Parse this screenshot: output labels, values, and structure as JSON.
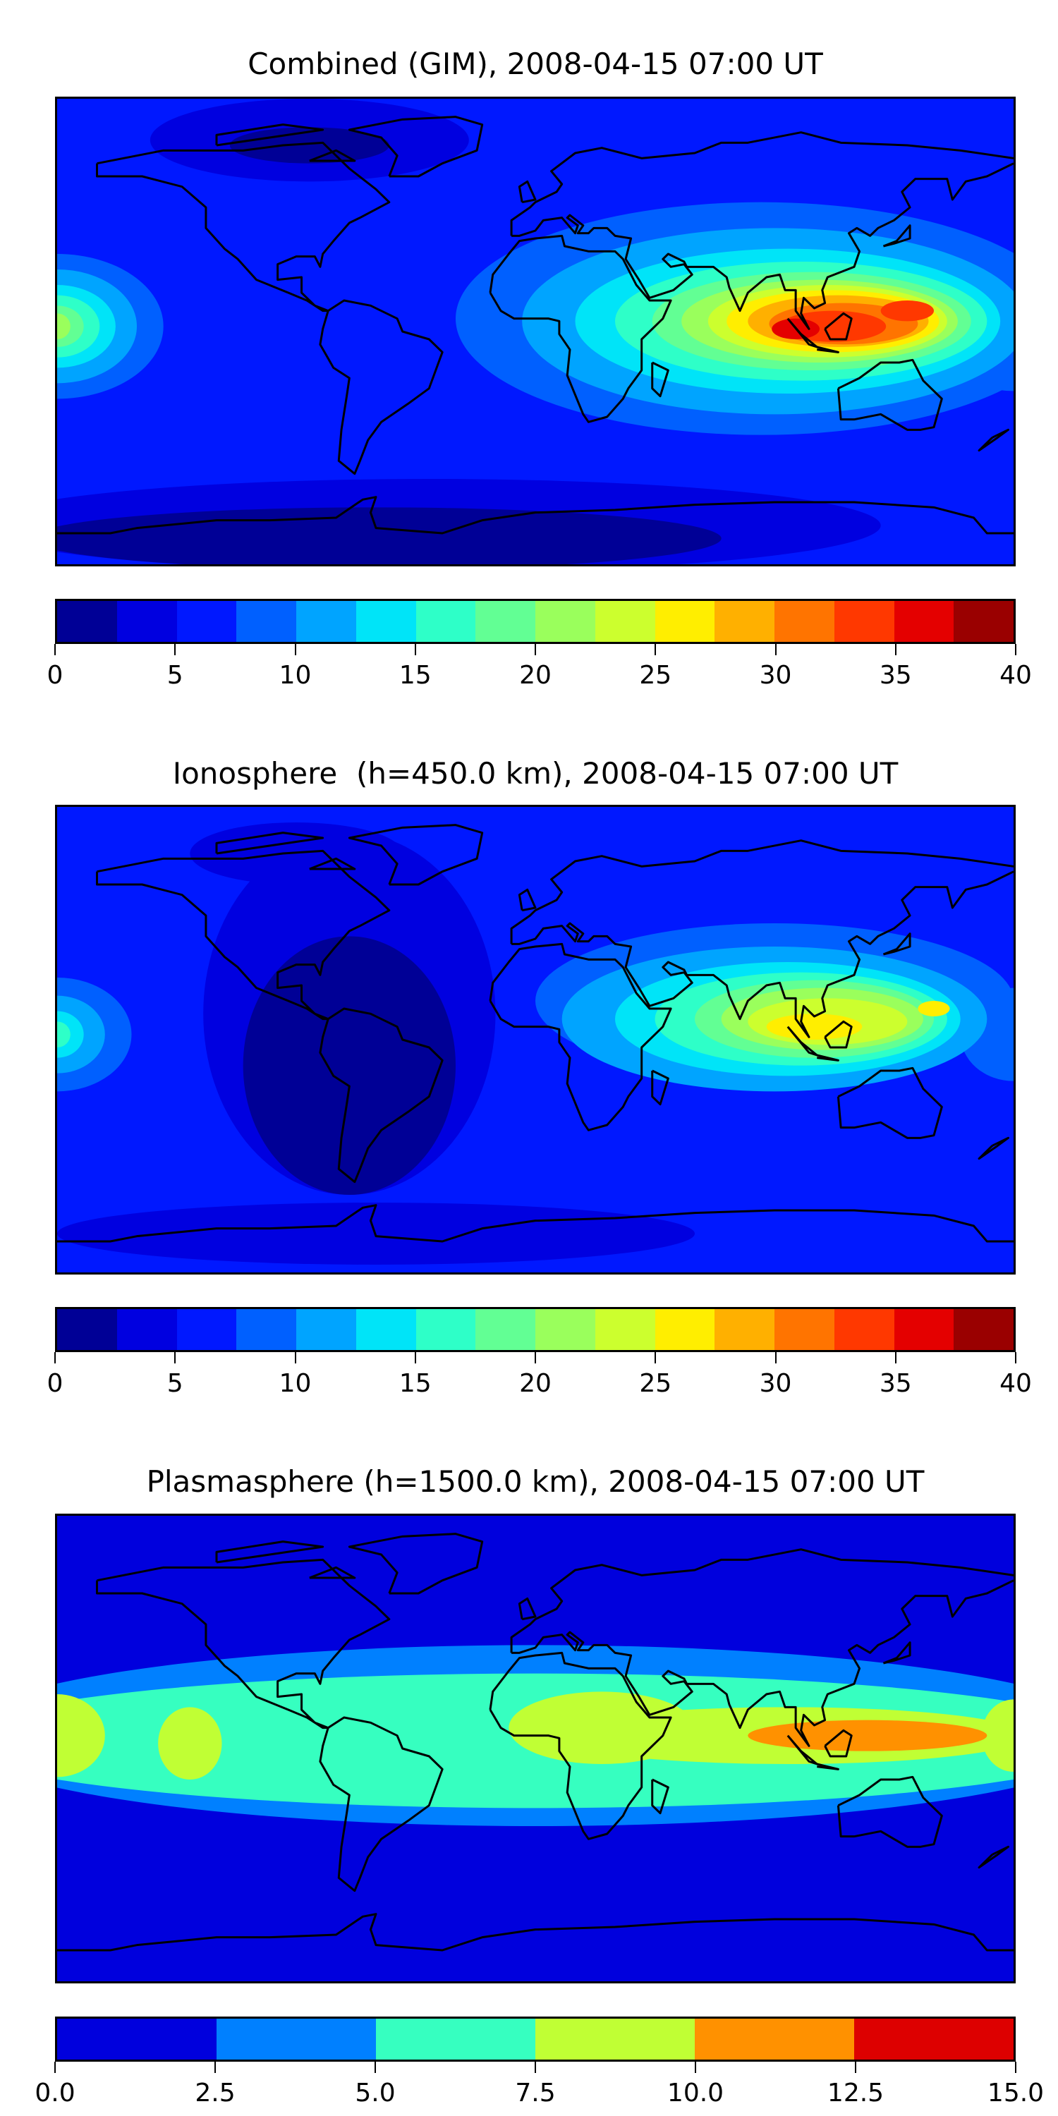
{
  "chart_data": [
    {
      "type": "heatmap",
      "subtype": "filled-contour world map",
      "title": "Combined (GIM), 2008-04-15 07:00 UT",
      "colorbar": {
        "levels": [
          0,
          2.5,
          5,
          7.5,
          10,
          12.5,
          15,
          17.5,
          20,
          22.5,
          25,
          27.5,
          30,
          32.5,
          35,
          37.5,
          40
        ],
        "tick_labels": [
          "0",
          "5",
          "10",
          "15",
          "20",
          "25",
          "30",
          "35",
          "40"
        ],
        "colors": [
          "#000096",
          "#0000e0",
          "#0018ff",
          "#0060ff",
          "#00a4ff",
          "#00e4f8",
          "#2effc8",
          "#62ff94",
          "#9aff5c",
          "#ccff2e",
          "#ffee00",
          "#ffb000",
          "#ff7400",
          "#ff3800",
          "#e40000",
          "#9a0000"
        ]
      },
      "lon_range": [
        -180,
        180
      ],
      "lat_range": [
        -90,
        90
      ],
      "peak_region": "Southeast Asia / Indonesia, ~35-40"
    },
    {
      "type": "heatmap",
      "subtype": "filled-contour world map",
      "title": "Ionosphere  (h=450.0 km), 2008-04-15 07:00 UT",
      "colorbar": {
        "levels": [
          0,
          2.5,
          5,
          7.5,
          10,
          12.5,
          15,
          17.5,
          20,
          22.5,
          25,
          27.5,
          30,
          32.5,
          35,
          37.5,
          40
        ],
        "tick_labels": [
          "0",
          "5",
          "10",
          "15",
          "20",
          "25",
          "30",
          "35",
          "40"
        ],
        "colors": [
          "#000096",
          "#0000e0",
          "#0018ff",
          "#0060ff",
          "#00a4ff",
          "#00e4f8",
          "#2effc8",
          "#62ff94",
          "#9aff5c",
          "#ccff2e",
          "#ffee00",
          "#ffb000",
          "#ff7400",
          "#ff3800",
          "#e40000",
          "#9a0000"
        ]
      },
      "lon_range": [
        -180,
        180
      ],
      "lat_range": [
        -90,
        90
      ],
      "peak_region": "South / Southeast Asia, ~25-27.5"
    },
    {
      "type": "heatmap",
      "subtype": "filled-contour world map",
      "title": "Plasmasphere (h=1500.0 km), 2008-04-15 07:00 UT",
      "colorbar": {
        "levels": [
          0,
          2.5,
          5,
          7.5,
          10,
          12.5,
          15
        ],
        "tick_labels": [
          "0.0",
          "2.5",
          "5.0",
          "7.5",
          "10.0",
          "12.5",
          "15.0"
        ],
        "colors": [
          "#0000dd",
          "#0080ff",
          "#36ffc0",
          "#c0ff34",
          "#ff9100",
          "#dd0000"
        ]
      },
      "lon_range": [
        -180,
        180
      ],
      "lat_range": [
        -90,
        90
      ],
      "peak_region": "Indian Ocean / Indonesia, ~10-12.5"
    }
  ]
}
